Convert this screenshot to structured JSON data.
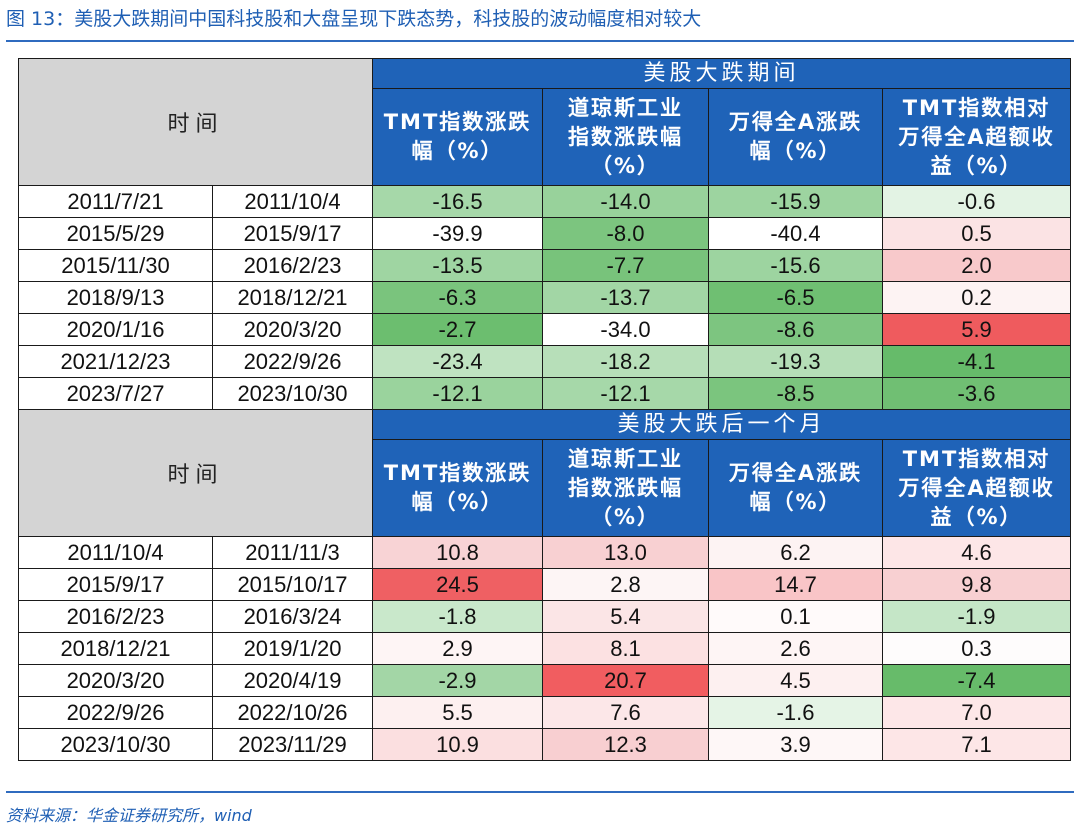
{
  "title": "图 13：美股大跌期间中国科技股和大盘呈现下跌态势，科技股的波动幅度相对较大",
  "source": "资料来源：华金证券研究所，wind",
  "time_label": "时间",
  "column_headers": [
    [
      "TMT指数涨跌",
      "幅（%）"
    ],
    [
      "道琼斯工业",
      "指数涨跌幅",
      "（%）"
    ],
    [
      "万得全A涨跌",
      "幅（%）"
    ],
    [
      "TMT指数相对",
      "万得全A超额收",
      "益（%）"
    ]
  ],
  "sections": [
    {
      "group_label": "美股大跌期间",
      "rows": [
        {
          "start": "2011/7/21",
          "end": "2011/10/4",
          "values": [
            "-16.5",
            "-14.0",
            "-15.9",
            "-0.6"
          ]
        },
        {
          "start": "2015/5/29",
          "end": "2015/9/17",
          "values": [
            "-39.9",
            "-8.0",
            "-40.4",
            "0.5"
          ]
        },
        {
          "start": "2015/11/30",
          "end": "2016/2/23",
          "values": [
            "-13.5",
            "-7.7",
            "-15.6",
            "2.0"
          ]
        },
        {
          "start": "2018/9/13",
          "end": "2018/12/21",
          "values": [
            "-6.3",
            "-13.7",
            "-6.5",
            "0.2"
          ]
        },
        {
          "start": "2020/1/16",
          "end": "2020/3/20",
          "values": [
            "-2.7",
            "-34.0",
            "-8.6",
            "5.9"
          ]
        },
        {
          "start": "2021/12/23",
          "end": "2022/9/26",
          "values": [
            "-23.4",
            "-18.2",
            "-19.3",
            "-4.1"
          ]
        },
        {
          "start": "2023/7/27",
          "end": "2023/10/30",
          "values": [
            "-12.1",
            "-12.1",
            "-8.5",
            "-3.6"
          ]
        }
      ],
      "cell_colors": [
        [
          "#a6d8a9",
          "#98d29b",
          "#9dd4a0",
          "#e3f3e4"
        ],
        [
          "#ffffff",
          "#7cc57f",
          "#ffffff",
          "#fbe3e4"
        ],
        [
          "#9fd5a2",
          "#78c37b",
          "#9dd4a0",
          "#f8c9cb"
        ],
        [
          "#7ac47d",
          "#a2d6a5",
          "#6fbf72",
          "#fdf3f3"
        ],
        [
          "#6cbe6f",
          "#ffffff",
          "#7dc580",
          "#ef5b5e"
        ],
        [
          "#bfe3c1",
          "#b7dfb9",
          "#b5deb7",
          "#66bb6a"
        ],
        [
          "#9ad39d",
          "#a6d8a9",
          "#7bc57e",
          "#70bf73"
        ]
      ]
    },
    {
      "group_label": "美股大跌后一个月",
      "rows": [
        {
          "start": "2011/10/4",
          "end": "2011/11/3",
          "values": [
            "10.8",
            "13.0",
            "6.2",
            "4.6"
          ]
        },
        {
          "start": "2015/9/17",
          "end": "2015/10/17",
          "values": [
            "24.5",
            "2.8",
            "14.7",
            "9.8"
          ]
        },
        {
          "start": "2016/2/23",
          "end": "2016/3/24",
          "values": [
            "-1.8",
            "5.4",
            "0.1",
            "-1.9"
          ]
        },
        {
          "start": "2018/12/21",
          "end": "2019/1/20",
          "values": [
            "2.9",
            "8.1",
            "2.6",
            "0.3"
          ]
        },
        {
          "start": "2020/3/20",
          "end": "2020/4/19",
          "values": [
            "-2.9",
            "20.7",
            "4.5",
            "-7.4"
          ]
        },
        {
          "start": "2022/9/26",
          "end": "2022/10/26",
          "values": [
            "5.5",
            "7.6",
            "-1.6",
            "7.0"
          ]
        },
        {
          "start": "2023/10/30",
          "end": "2023/11/29",
          "values": [
            "10.9",
            "12.3",
            "3.9",
            "7.1"
          ]
        }
      ],
      "cell_colors": [
        [
          "#f8d3d5",
          "#f8d0d2",
          "#fdf3f3",
          "#fde6e7"
        ],
        [
          "#ef6063",
          "#fdf5f5",
          "#f9c5c7",
          "#f8d0d2"
        ],
        [
          "#c9e8cb",
          "#fbe5e6",
          "#fffafa",
          "#c5e6c7"
        ],
        [
          "#fef5f5",
          "#fce1e2",
          "#fef5f5",
          "#fefcfc"
        ],
        [
          "#a3d6a6",
          "#f15d60",
          "#fdf0f0",
          "#67bb6a"
        ],
        [
          "#fdf0f0",
          "#fce7e8",
          "#e5f4e6",
          "#fde7e8"
        ],
        [
          "#fbdfe0",
          "#f8cfd1",
          "#fef7f7",
          "#fde6e7"
        ]
      ]
    }
  ]
}
